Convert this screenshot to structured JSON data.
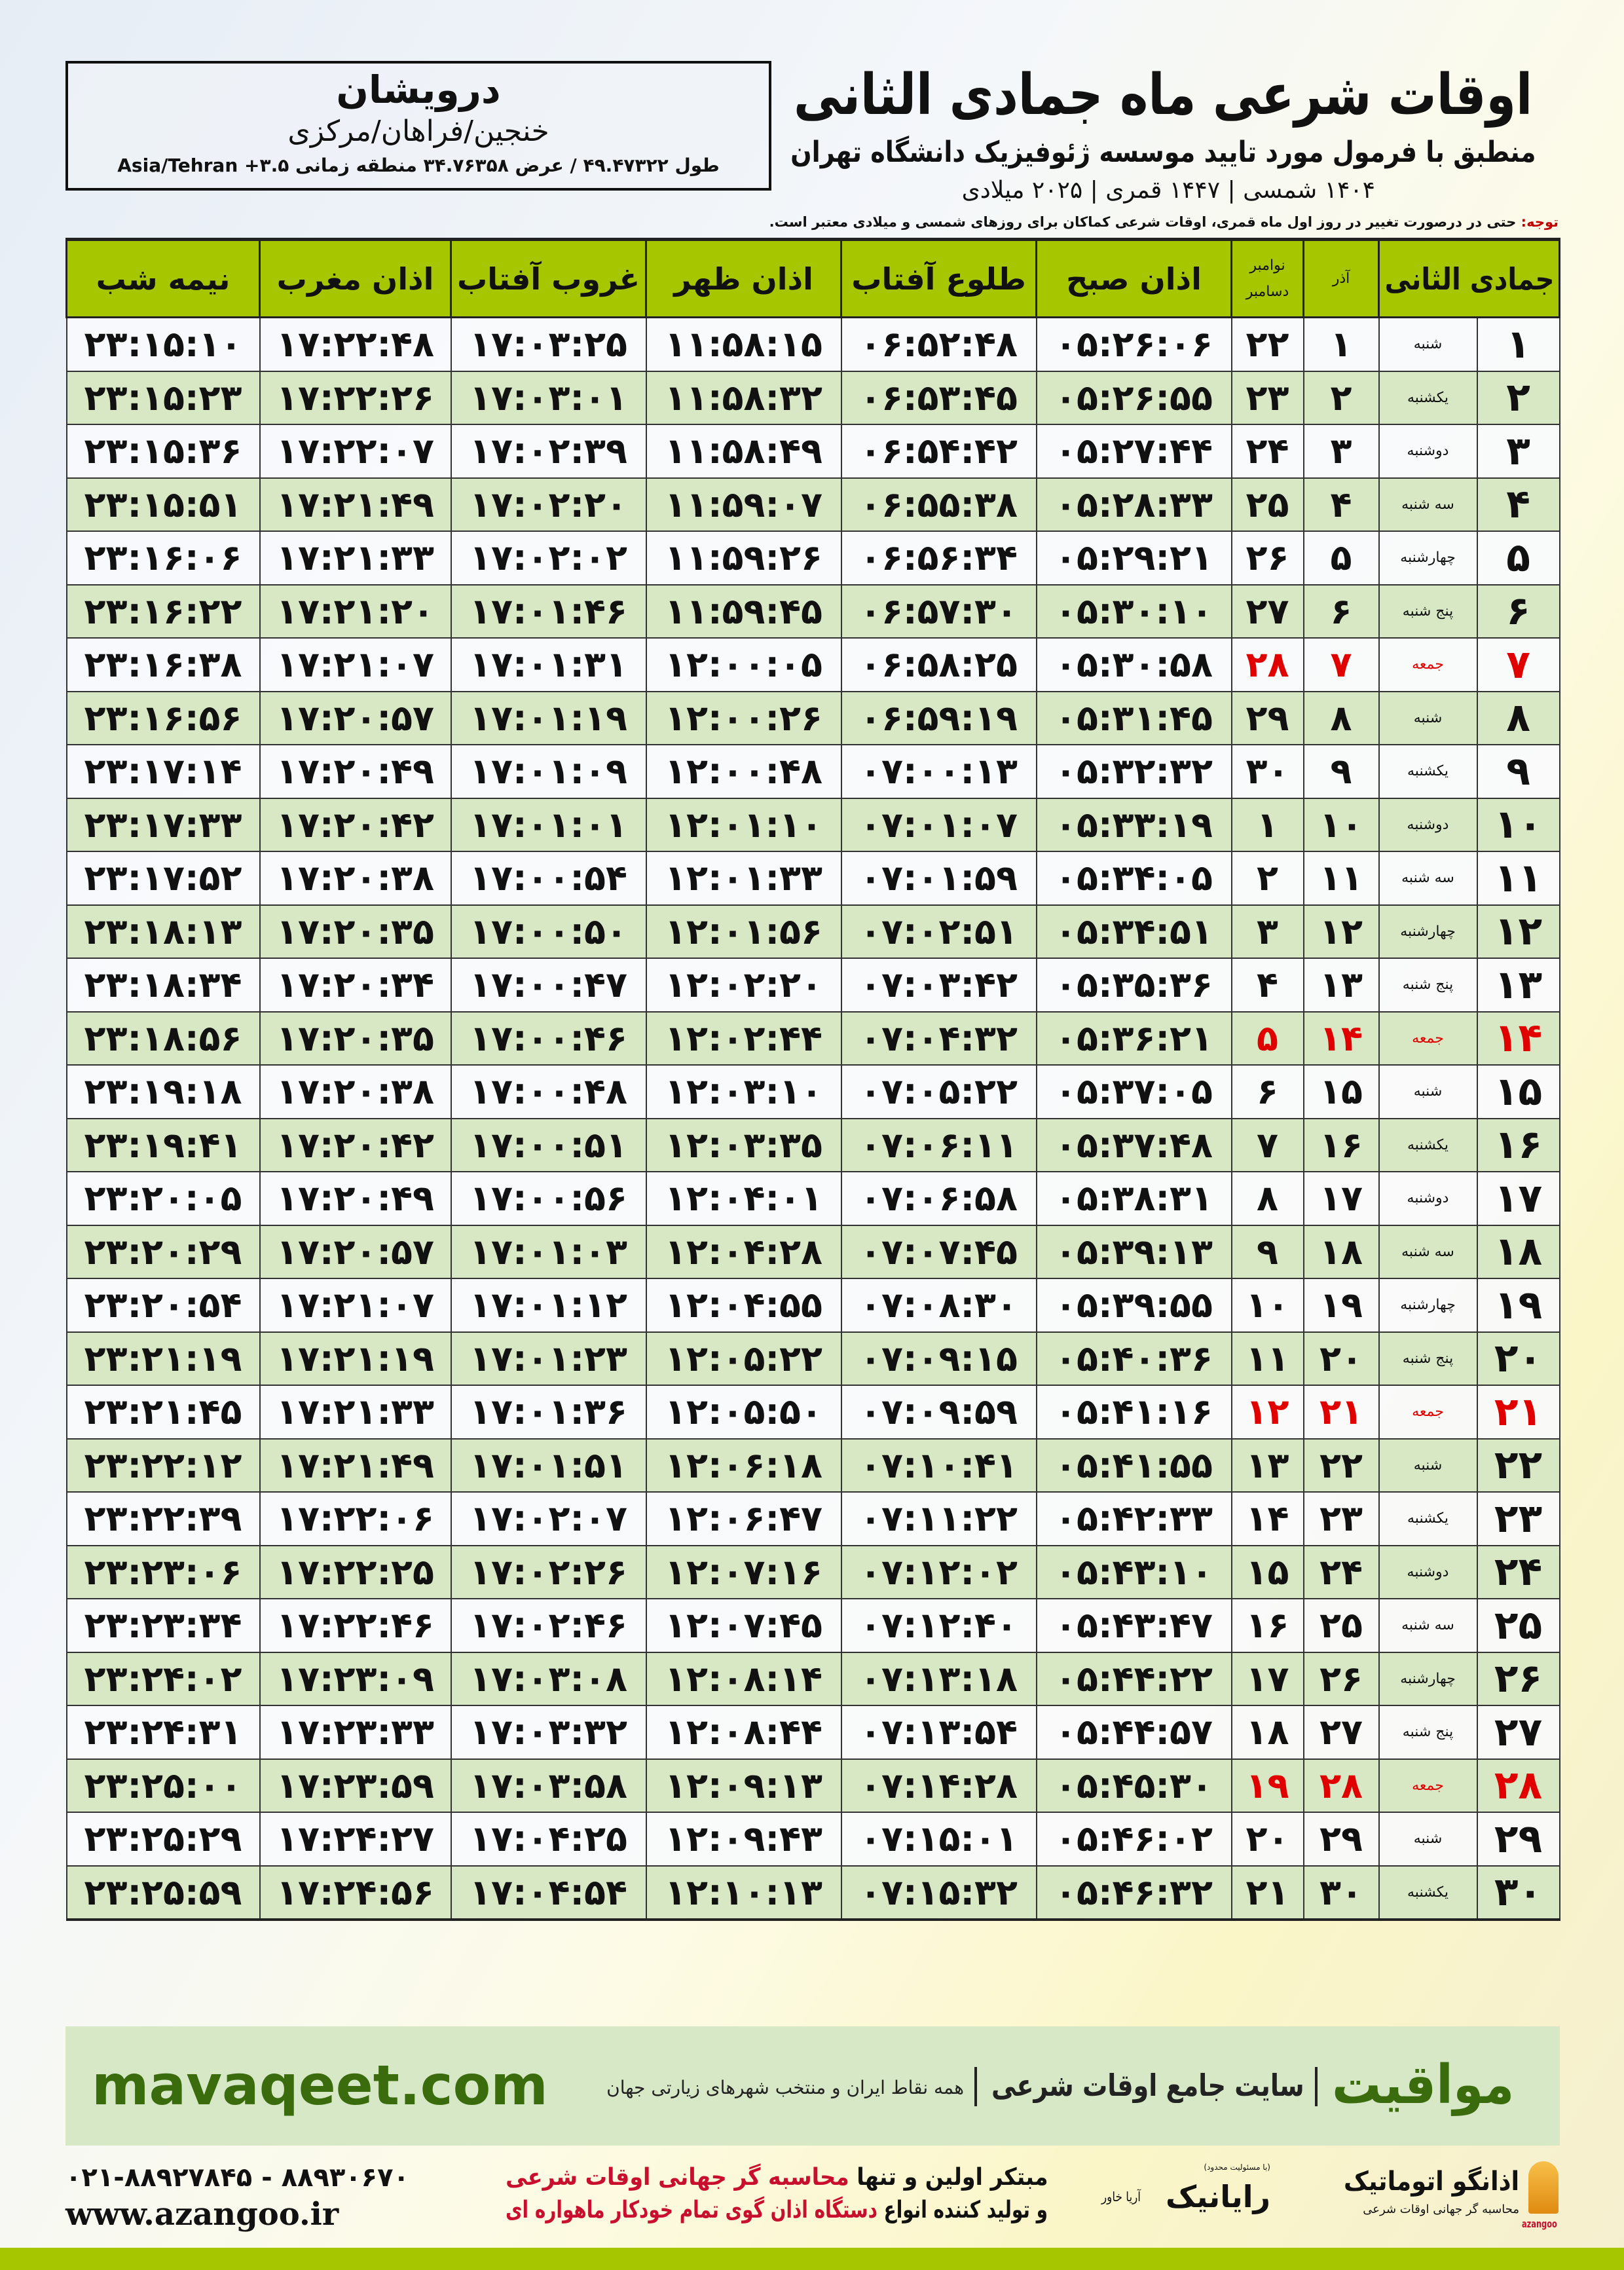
{
  "location": {
    "name": "درویشان",
    "region": "خنجین/فراهان/مرکزی",
    "coords": "طول ۴۹.۴۷۳۲۲ / عرض ۳۴.۷۶۳۵۸ منطقه زمانی ۳.۵+ Asia/Tehran"
  },
  "header": {
    "title": "اوقات شرعی ماه جمادی الثانی",
    "subtitle": "منطبق با فرمول مورد تایید موسسه ژئوفیزیک دانشگاه تهران",
    "years": "۱۴۰۴ شمسی | ۱۴۴۷ قمری | ۲۰۲۵ میلادی"
  },
  "note": {
    "label": "توجه:",
    "text": " حتی در درصورت تغییر در روز اول ماه قمری، اوقات شرعی کماکان برای روزهای شمسی و میلادی معتبر است."
  },
  "table": {
    "headers": {
      "hijri": "جمادی الثانی",
      "azar": "آذر",
      "gregorian_top": "نوامبر",
      "gregorian_bottom": "دسامبر",
      "fajr": "اذان صبح",
      "sunrise": "طلوع آفتاب",
      "dhuhr": "اذان ظهر",
      "sunset": "غروب آفتاب",
      "maghrib": "اذان مغرب",
      "midnight": "نیمه شب"
    },
    "friday_color": "#e00000",
    "rows": [
      [
        "۱",
        "شنبه",
        "۱",
        "۲۲",
        "۰۵:۲۶:۰۶",
        "۰۶:۵۲:۴۸",
        "۱۱:۵۸:۱۵",
        "۱۷:۰۳:۲۵",
        "۱۷:۲۲:۴۸",
        "۲۳:۱۵:۱۰"
      ],
      [
        "۲",
        "یکشنبه",
        "۲",
        "۲۳",
        "۰۵:۲۶:۵۵",
        "۰۶:۵۳:۴۵",
        "۱۱:۵۸:۳۲",
        "۱۷:۰۳:۰۱",
        "۱۷:۲۲:۲۶",
        "۲۳:۱۵:۲۳"
      ],
      [
        "۳",
        "دوشنبه",
        "۳",
        "۲۴",
        "۰۵:۲۷:۴۴",
        "۰۶:۵۴:۴۲",
        "۱۱:۵۸:۴۹",
        "۱۷:۰۲:۳۹",
        "۱۷:۲۲:۰۷",
        "۲۳:۱۵:۳۶"
      ],
      [
        "۴",
        "سه شنبه",
        "۴",
        "۲۵",
        "۰۵:۲۸:۳۳",
        "۰۶:۵۵:۳۸",
        "۱۱:۵۹:۰۷",
        "۱۷:۰۲:۲۰",
        "۱۷:۲۱:۴۹",
        "۲۳:۱۵:۵۱"
      ],
      [
        "۵",
        "چهارشنبه",
        "۵",
        "۲۶",
        "۰۵:۲۹:۲۱",
        "۰۶:۵۶:۳۴",
        "۱۱:۵۹:۲۶",
        "۱۷:۰۲:۰۲",
        "۱۷:۲۱:۳۳",
        "۲۳:۱۶:۰۶"
      ],
      [
        "۶",
        "پنج شنبه",
        "۶",
        "۲۷",
        "۰۵:۳۰:۱۰",
        "۰۶:۵۷:۳۰",
        "۱۱:۵۹:۴۵",
        "۱۷:۰۱:۴۶",
        "۱۷:۲۱:۲۰",
        "۲۳:۱۶:۲۲"
      ],
      [
        "۷",
        "جمعه",
        "۷",
        "۲۸",
        "۰۵:۳۰:۵۸",
        "۰۶:۵۸:۲۵",
        "۱۲:۰۰:۰۵",
        "۱۷:۰۱:۳۱",
        "۱۷:۲۱:۰۷",
        "۲۳:۱۶:۳۸"
      ],
      [
        "۸",
        "شنبه",
        "۸",
        "۲۹",
        "۰۵:۳۱:۴۵",
        "۰۶:۵۹:۱۹",
        "۱۲:۰۰:۲۶",
        "۱۷:۰۱:۱۹",
        "۱۷:۲۰:۵۷",
        "۲۳:۱۶:۵۶"
      ],
      [
        "۹",
        "یکشنبه",
        "۹",
        "۳۰",
        "۰۵:۳۲:۳۲",
        "۰۷:۰۰:۱۳",
        "۱۲:۰۰:۴۸",
        "۱۷:۰۱:۰۹",
        "۱۷:۲۰:۴۹",
        "۲۳:۱۷:۱۴"
      ],
      [
        "۱۰",
        "دوشنبه",
        "۱۰",
        "۱",
        "۰۵:۳۳:۱۹",
        "۰۷:۰۱:۰۷",
        "۱۲:۰۱:۱۰",
        "۱۷:۰۱:۰۱",
        "۱۷:۲۰:۴۲",
        "۲۳:۱۷:۳۳"
      ],
      [
        "۱۱",
        "سه شنبه",
        "۱۱",
        "۲",
        "۰۵:۳۴:۰۵",
        "۰۷:۰۱:۵۹",
        "۱۲:۰۱:۳۳",
        "۱۷:۰۰:۵۴",
        "۱۷:۲۰:۳۸",
        "۲۳:۱۷:۵۲"
      ],
      [
        "۱۲",
        "چهارشنبه",
        "۱۲",
        "۳",
        "۰۵:۳۴:۵۱",
        "۰۷:۰۲:۵۱",
        "۱۲:۰۱:۵۶",
        "۱۷:۰۰:۵۰",
        "۱۷:۲۰:۳۵",
        "۲۳:۱۸:۱۳"
      ],
      [
        "۱۳",
        "پنج شنبه",
        "۱۳",
        "۴",
        "۰۵:۳۵:۳۶",
        "۰۷:۰۳:۴۲",
        "۱۲:۰۲:۲۰",
        "۱۷:۰۰:۴۷",
        "۱۷:۲۰:۳۴",
        "۲۳:۱۸:۳۴"
      ],
      [
        "۱۴",
        "جمعه",
        "۱۴",
        "۵",
        "۰۵:۳۶:۲۱",
        "۰۷:۰۴:۳۲",
        "۱۲:۰۲:۴۴",
        "۱۷:۰۰:۴۶",
        "۱۷:۲۰:۳۵",
        "۲۳:۱۸:۵۶"
      ],
      [
        "۱۵",
        "شنبه",
        "۱۵",
        "۶",
        "۰۵:۳۷:۰۵",
        "۰۷:۰۵:۲۲",
        "۱۲:۰۳:۱۰",
        "۱۷:۰۰:۴۸",
        "۱۷:۲۰:۳۸",
        "۲۳:۱۹:۱۸"
      ],
      [
        "۱۶",
        "یکشنبه",
        "۱۶",
        "۷",
        "۰۵:۳۷:۴۸",
        "۰۷:۰۶:۱۱",
        "۱۲:۰۳:۳۵",
        "۱۷:۰۰:۵۱",
        "۱۷:۲۰:۴۲",
        "۲۳:۱۹:۴۱"
      ],
      [
        "۱۷",
        "دوشنبه",
        "۱۷",
        "۸",
        "۰۵:۳۸:۳۱",
        "۰۷:۰۶:۵۸",
        "۱۲:۰۴:۰۱",
        "۱۷:۰۰:۵۶",
        "۱۷:۲۰:۴۹",
        "۲۳:۲۰:۰۵"
      ],
      [
        "۱۸",
        "سه شنبه",
        "۱۸",
        "۹",
        "۰۵:۳۹:۱۳",
        "۰۷:۰۷:۴۵",
        "۱۲:۰۴:۲۸",
        "۱۷:۰۱:۰۳",
        "۱۷:۲۰:۵۷",
        "۲۳:۲۰:۲۹"
      ],
      [
        "۱۹",
        "چهارشنبه",
        "۱۹",
        "۱۰",
        "۰۵:۳۹:۵۵",
        "۰۷:۰۸:۳۰",
        "۱۲:۰۴:۵۵",
        "۱۷:۰۱:۱۲",
        "۱۷:۲۱:۰۷",
        "۲۳:۲۰:۵۴"
      ],
      [
        "۲۰",
        "پنج شنبه",
        "۲۰",
        "۱۱",
        "۰۵:۴۰:۳۶",
        "۰۷:۰۹:۱۵",
        "۱۲:۰۵:۲۲",
        "۱۷:۰۱:۲۳",
        "۱۷:۲۱:۱۹",
        "۲۳:۲۱:۱۹"
      ],
      [
        "۲۱",
        "جمعه",
        "۲۱",
        "۱۲",
        "۰۵:۴۱:۱۶",
        "۰۷:۰۹:۵۹",
        "۱۲:۰۵:۵۰",
        "۱۷:۰۱:۳۶",
        "۱۷:۲۱:۳۳",
        "۲۳:۲۱:۴۵"
      ],
      [
        "۲۲",
        "شنبه",
        "۲۲",
        "۱۳",
        "۰۵:۴۱:۵۵",
        "۰۷:۱۰:۴۱",
        "۱۲:۰۶:۱۸",
        "۱۷:۰۱:۵۱",
        "۱۷:۲۱:۴۹",
        "۲۳:۲۲:۱۲"
      ],
      [
        "۲۳",
        "یکشنبه",
        "۲۳",
        "۱۴",
        "۰۵:۴۲:۳۳",
        "۰۷:۱۱:۲۲",
        "۱۲:۰۶:۴۷",
        "۱۷:۰۲:۰۷",
        "۱۷:۲۲:۰۶",
        "۲۳:۲۲:۳۹"
      ],
      [
        "۲۴",
        "دوشنبه",
        "۲۴",
        "۱۵",
        "۰۵:۴۳:۱۰",
        "۰۷:۱۲:۰۲",
        "۱۲:۰۷:۱۶",
        "۱۷:۰۲:۲۶",
        "۱۷:۲۲:۲۵",
        "۲۳:۲۳:۰۶"
      ],
      [
        "۲۵",
        "سه شنبه",
        "۲۵",
        "۱۶",
        "۰۵:۴۳:۴۷",
        "۰۷:۱۲:۴۰",
        "۱۲:۰۷:۴۵",
        "۱۷:۰۲:۴۶",
        "۱۷:۲۲:۴۶",
        "۲۳:۲۳:۳۴"
      ],
      [
        "۲۶",
        "چهارشنبه",
        "۲۶",
        "۱۷",
        "۰۵:۴۴:۲۲",
        "۰۷:۱۳:۱۸",
        "۱۲:۰۸:۱۴",
        "۱۷:۰۳:۰۸",
        "۱۷:۲۳:۰۹",
        "۲۳:۲۴:۰۲"
      ],
      [
        "۲۷",
        "پنج شنبه",
        "۲۷",
        "۱۸",
        "۰۵:۴۴:۵۷",
        "۰۷:۱۳:۵۴",
        "۱۲:۰۸:۴۴",
        "۱۷:۰۳:۳۲",
        "۱۷:۲۳:۳۳",
        "۲۳:۲۴:۳۱"
      ],
      [
        "۲۸",
        "جمعه",
        "۲۸",
        "۱۹",
        "۰۵:۴۵:۳۰",
        "۰۷:۱۴:۲۸",
        "۱۲:۰۹:۱۳",
        "۱۷:۰۳:۵۸",
        "۱۷:۲۳:۵۹",
        "۲۳:۲۵:۰۰"
      ],
      [
        "۲۹",
        "شنبه",
        "۲۹",
        "۲۰",
        "۰۵:۴۶:۰۲",
        "۰۷:۱۵:۰۱",
        "۱۲:۰۹:۴۳",
        "۱۷:۰۴:۲۵",
        "۱۷:۲۴:۲۷",
        "۲۳:۲۵:۲۹"
      ],
      [
        "۳۰",
        "یکشنبه",
        "۳۰",
        "۲۱",
        "۰۵:۴۶:۳۲",
        "۰۷:۱۵:۳۲",
        "۱۲:۱۰:۱۳",
        "۱۷:۰۴:۵۴",
        "۱۷:۲۴:۵۶",
        "۲۳:۲۵:۵۹"
      ]
    ]
  },
  "promo": {
    "url": "mavaqeet.com",
    "brand": "مواقیت",
    "slogan": "سایت جامع اوقات شرعی",
    "sub": "همه نقاط ایران و منتخب شهرهای زیارتی جهان",
    "brand_color": "#3a6b0c"
  },
  "footer": {
    "phones": "۰۲۱-۸۸۹۲۷۸۴۵ - ۸۸۹۳۰۶۷۰",
    "website": "www.azangoo.ir",
    "ad_line1_a": "مبتکر اولین و تنها ",
    "ad_line1_b": "محاسبه گر جهانی اوقات شرعی",
    "ad_line2_a": "و تولید کننده انواع ",
    "ad_line2_b": "دستگاه اذان گوی تمام خودکار ماهواره ای",
    "logo_azangoo": "اذانگو اتوماتیک",
    "logo_azangoo_sub": "محاسبه گر جهانی اوقات شرعی",
    "logo_azangoo_en": "azangoo",
    "logo_rayanik": "رایانیک",
    "logo_rayanik_tag": "(با مسئولیت محدود)",
    "logo_rayanik_side": "آریا خاور",
    "accent_red": "#c8102e",
    "bar_color": "#a6c600"
  }
}
